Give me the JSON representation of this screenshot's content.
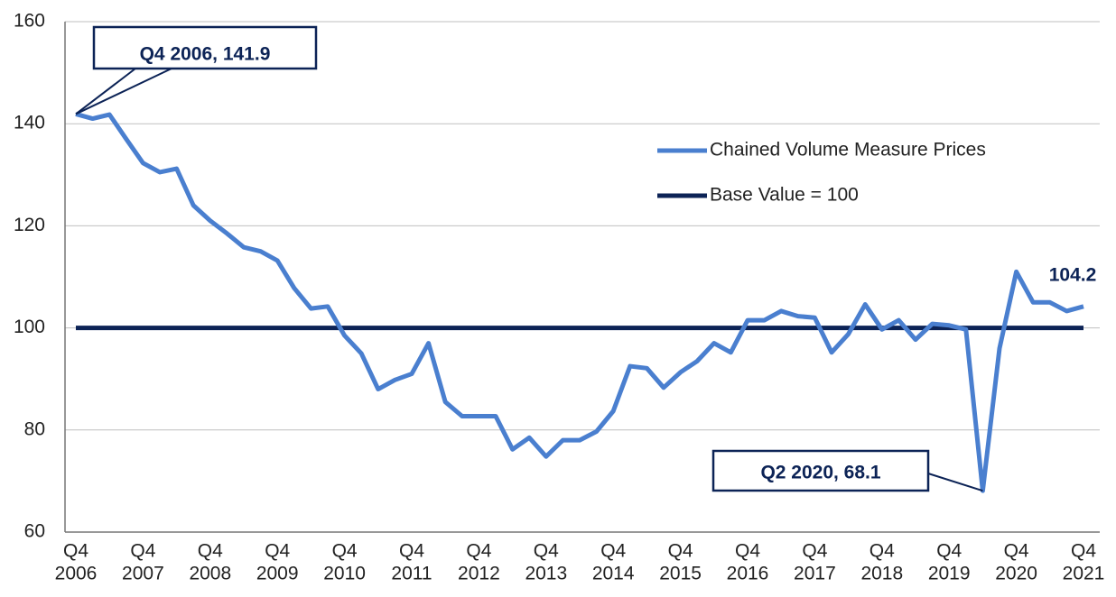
{
  "chart_data": {
    "type": "line",
    "categories": [
      [
        "Q4",
        "2006"
      ],
      null,
      null,
      null,
      [
        "Q4",
        "2007"
      ],
      null,
      null,
      null,
      [
        "Q4",
        "2008"
      ],
      null,
      null,
      null,
      [
        "Q4",
        "2009"
      ],
      null,
      null,
      null,
      [
        "Q4",
        "2010"
      ],
      null,
      null,
      null,
      [
        "Q4",
        "2011"
      ],
      null,
      null,
      null,
      [
        "Q4",
        "2012"
      ],
      null,
      null,
      null,
      [
        "Q4",
        "2013"
      ],
      null,
      null,
      null,
      [
        "Q4",
        "2014"
      ],
      null,
      null,
      null,
      [
        "Q4",
        "2015"
      ],
      null,
      null,
      null,
      [
        "Q4",
        "2016"
      ],
      null,
      null,
      null,
      [
        "Q4",
        "2017"
      ],
      null,
      null,
      null,
      [
        "Q4",
        "2018"
      ],
      null,
      null,
      null,
      [
        "Q4",
        "2019"
      ],
      null,
      null,
      null,
      [
        "Q4",
        "2020"
      ],
      null,
      null,
      null,
      [
        "Q4",
        "2021"
      ]
    ],
    "series": [
      {
        "name": "Chained Volume Measure Prices",
        "color": "#4a7fcf",
        "values": [
          141.9,
          141,
          141.8,
          137,
          132.3,
          130.5,
          131.2,
          124,
          121,
          118.5,
          115.8,
          115,
          113.2,
          107.8,
          103.8,
          104.2,
          98.5,
          95,
          88,
          89.8,
          91,
          97,
          85.5,
          82.7,
          82.7,
          82.7,
          76.2,
          78.5,
          74.8,
          78,
          78,
          79.7,
          83.7,
          92.5,
          92.1,
          88.3,
          91.3,
          93.5,
          97,
          95.2,
          101.5,
          101.5,
          103.3,
          102.3,
          102,
          95.2,
          98.8,
          104.6,
          99.7,
          101.5,
          97.7,
          100.8,
          100.5,
          99.7,
          68.1,
          96,
          111,
          105,
          105,
          103.3,
          104.2
        ]
      },
      {
        "name": "Base Value = 100",
        "color": "#0c2356",
        "values": [
          100,
          100,
          100,
          100,
          100,
          100,
          100,
          100,
          100,
          100,
          100,
          100,
          100,
          100,
          100,
          100,
          100,
          100,
          100,
          100,
          100,
          100,
          100,
          100,
          100,
          100,
          100,
          100,
          100,
          100,
          100,
          100,
          100,
          100,
          100,
          100,
          100,
          100,
          100,
          100,
          100,
          100,
          100,
          100,
          100,
          100,
          100,
          100,
          100,
          100,
          100,
          100,
          100,
          100,
          100,
          100,
          100,
          100,
          100,
          100,
          100
        ]
      }
    ],
    "annotations": [
      "Q4 2006, 141.9",
      "Q2 2020, 68.1",
      "104.2"
    ],
    "ylim": [
      60,
      160
    ],
    "yticks": [
      60,
      80,
      100,
      120,
      140,
      160
    ],
    "grid": true,
    "legend": "right"
  }
}
